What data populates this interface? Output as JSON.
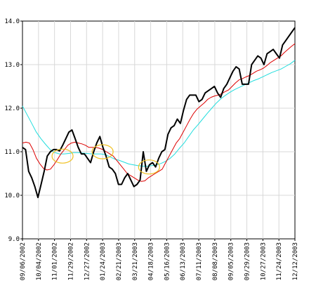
{
  "chart_data": {
    "type": "line",
    "title": "",
    "xlabel": "",
    "ylabel": "",
    "ylim": [
      9.0,
      14.0
    ],
    "y_ticks": [
      "9.0",
      "10.0",
      "11.0",
      "12.0",
      "13.0",
      "14.0"
    ],
    "x_ticks": [
      "09/06/2002",
      "10/04/2002",
      "11/01/2002",
      "11/29/2002",
      "12/27/2002",
      "01/24/2003",
      "02/21/2003",
      "03/21/2003",
      "04/18/2003",
      "05/16/2003",
      "06/13/2003",
      "07/11/2003",
      "08/08/2003",
      "09/05/2003",
      "09/29/2003",
      "10/27/2003",
      "11/24/2003",
      "12/12/2003"
    ],
    "grid": true,
    "series": [
      {
        "color": "#000000",
        "values": [
          11.1,
          11.05,
          10.55,
          10.4,
          10.2,
          9.95,
          10.25,
          10.55,
          10.9,
          11.0,
          11.05,
          11.05,
          11.02,
          11.15,
          11.3,
          11.45,
          11.5,
          11.3,
          11.1,
          10.95,
          10.95,
          10.85,
          10.75,
          11.0,
          11.2,
          11.35,
          11.1,
          10.9,
          10.65,
          10.6,
          10.5,
          10.25,
          10.25,
          10.4,
          10.5,
          10.35,
          10.2,
          10.25,
          10.35,
          11.0,
          10.55,
          10.7,
          10.75,
          10.65,
          10.85,
          11.0,
          11.05,
          11.4,
          11.55,
          11.6,
          11.75,
          11.65,
          11.95,
          12.2,
          12.3,
          12.3,
          12.3,
          12.15,
          12.2,
          12.35,
          12.4,
          12.45,
          12.5,
          12.35,
          12.25,
          12.45,
          12.55,
          12.7,
          12.85,
          12.95,
          12.9,
          12.55,
          12.55,
          12.55,
          13.0,
          13.1,
          13.2,
          13.15,
          13.0,
          13.25,
          13.3,
          13.35,
          13.25,
          13.15,
          13.45,
          13.55,
          13.65,
          13.75,
          13.85
        ],
        "x_start": 0,
        "x_end": 17
      },
      {
        "color": "#dd0000",
        "values": [
          11.2,
          11.22,
          11.2,
          11.05,
          10.85,
          10.72,
          10.62,
          10.58,
          10.6,
          10.7,
          10.82,
          10.95,
          11.05,
          11.15,
          11.2,
          11.22,
          11.2,
          11.18,
          11.15,
          11.1,
          11.1,
          11.1,
          11.08,
          11.05,
          11.0,
          10.95,
          10.9,
          10.8,
          10.7,
          10.6,
          10.5,
          10.45,
          10.4,
          10.35,
          10.32,
          10.33,
          10.4,
          10.45,
          10.5,
          10.55,
          10.6,
          10.75,
          10.9,
          11.05,
          11.2,
          11.3,
          11.45,
          11.6,
          11.75,
          11.88,
          11.98,
          12.05,
          12.12,
          12.2,
          12.25,
          12.28,
          12.3,
          12.33,
          12.38,
          12.42,
          12.5,
          12.58,
          12.65,
          12.68,
          12.72,
          12.75,
          12.8,
          12.85,
          12.88,
          12.92,
          12.98,
          13.05,
          13.1,
          13.15,
          13.2,
          13.28,
          13.35,
          13.42,
          13.48
        ],
        "x_start": 0,
        "x_end": 17
      },
      {
        "color": "#22dddd",
        "values": [
          12.05,
          11.85,
          11.65,
          11.45,
          11.3,
          11.17,
          11.05,
          10.98,
          10.95,
          10.95,
          10.96,
          10.98,
          10.98,
          10.97,
          10.96,
          10.95,
          10.95,
          10.95,
          10.93,
          10.88,
          10.83,
          10.8,
          10.76,
          10.72,
          10.7,
          10.68,
          10.67,
          10.67,
          10.68,
          10.7,
          10.73,
          10.78,
          10.85,
          10.95,
          11.08,
          11.2,
          11.35,
          11.5,
          11.62,
          11.75,
          11.88,
          12.0,
          12.12,
          12.22,
          12.3,
          12.37,
          12.43,
          12.48,
          12.53,
          12.58,
          12.63,
          12.67,
          12.72,
          12.77,
          12.82,
          12.86,
          12.9,
          12.96,
          13.02,
          13.1
        ],
        "x_start": 0,
        "x_end": 17
      }
    ],
    "annotations": [
      {
        "type": "ellipse",
        "color": "#f0c020",
        "x_index": 2.5,
        "y": 10.9
      },
      {
        "type": "ellipse",
        "color": "#f0c020",
        "x_index": 5.0,
        "y": 11.0
      },
      {
        "type": "ellipse",
        "color": "#f0c020",
        "x_index": 7.9,
        "y": 10.65
      }
    ]
  }
}
